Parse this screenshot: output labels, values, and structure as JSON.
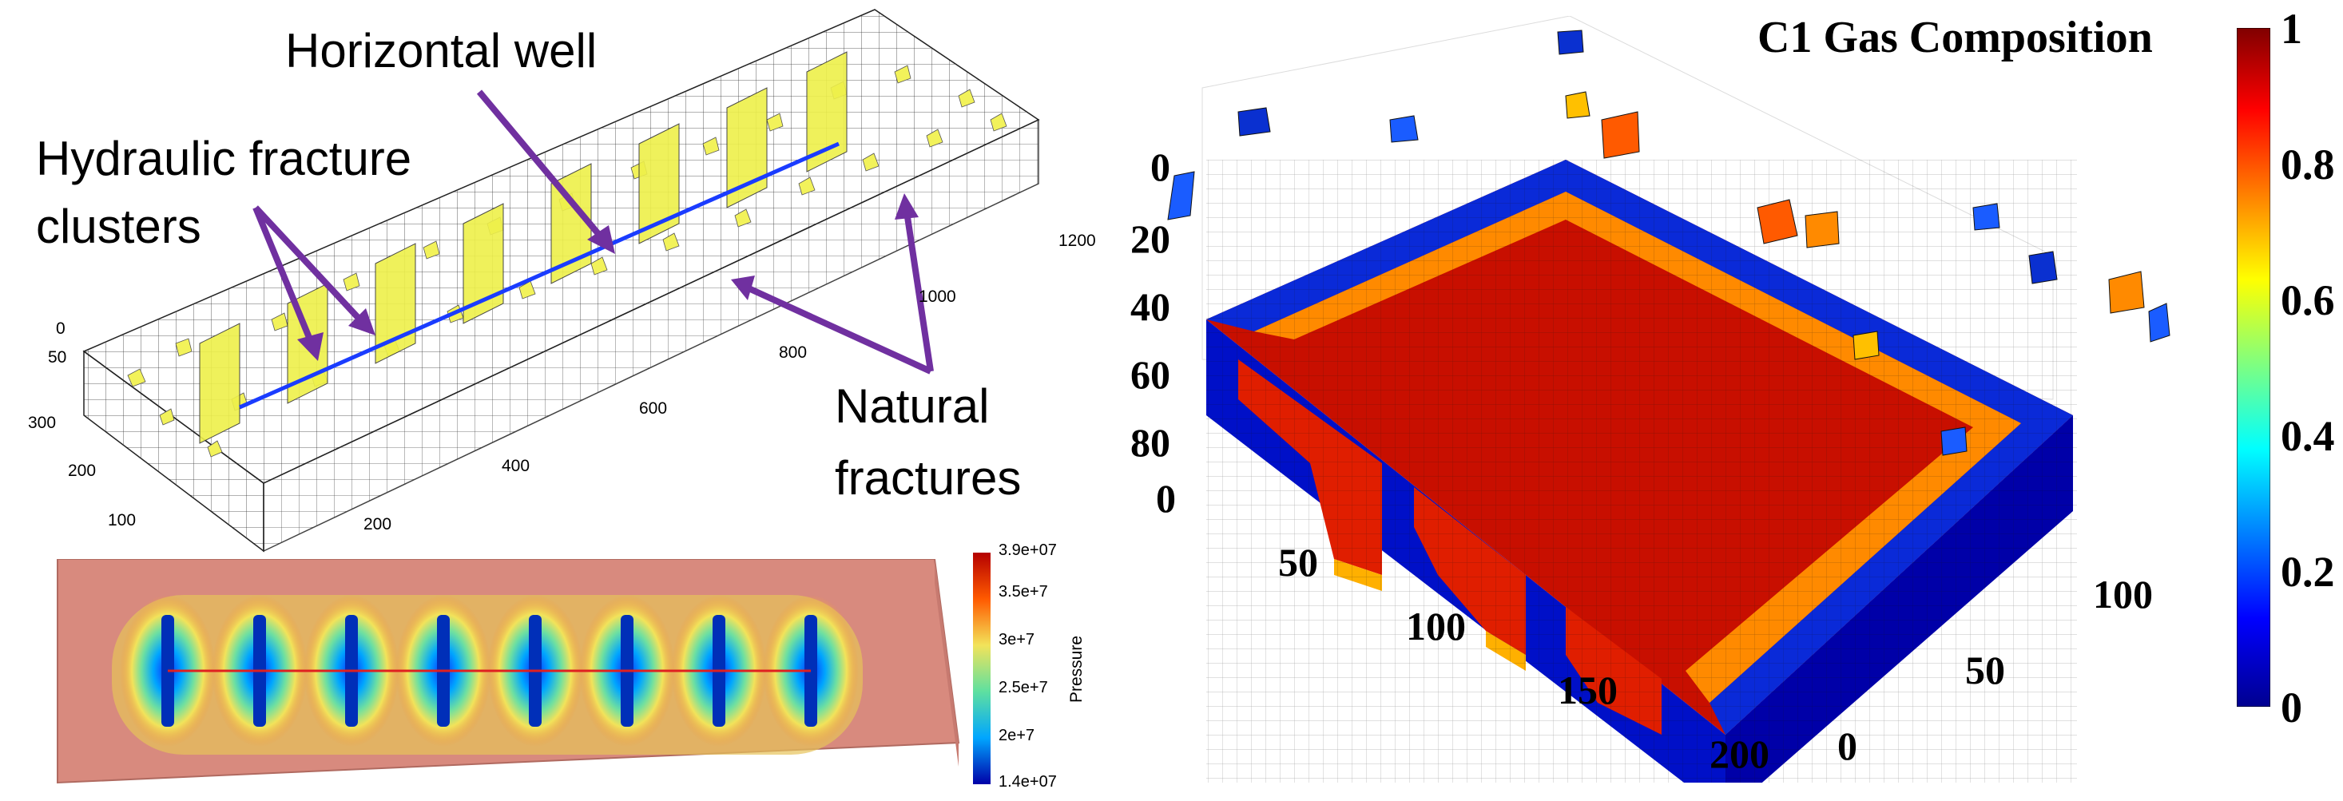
{
  "annotations": {
    "horizontal_well": "Horizontal well",
    "hydraulic_fracture": [
      "Hydraulic fracture",
      "clusters"
    ],
    "natural_fractures": [
      "Natural",
      "fractures"
    ]
  },
  "mesh_axis": {
    "z_ticks": [
      "0",
      "50"
    ],
    "y_ticks": [
      "300",
      "200",
      "100",
      "0"
    ],
    "x_ticks": [
      "0",
      "200",
      "400",
      "600",
      "800",
      "1000",
      "1200"
    ]
  },
  "pressure_panel": {
    "title": "Pressure",
    "ticks": [
      "3.9e+07",
      "3.5e+7",
      "3e+7",
      "2.5e+7",
      "2e+7",
      "1.4e+07"
    ],
    "max": 39000000.0,
    "min": 14000000.0
  },
  "gas_panel": {
    "title": "C1 Gas Composition",
    "z_ticks": [
      "0",
      "20",
      "40",
      "60",
      "80"
    ],
    "x_ticks": [
      "0",
      "50",
      "100",
      "150",
      "200"
    ],
    "y_ticks": [
      "0",
      "50",
      "100"
    ],
    "colorbar_ticks": [
      "1",
      "0.8",
      "0.6",
      "0.4",
      "0.2",
      "0"
    ]
  },
  "colors": {
    "arrow": "#7030a0",
    "well_line": "#1a3cff",
    "fracture_fill": "#f2f25a",
    "jet_red": "#b40000",
    "jet_blue": "#0000a8"
  }
}
